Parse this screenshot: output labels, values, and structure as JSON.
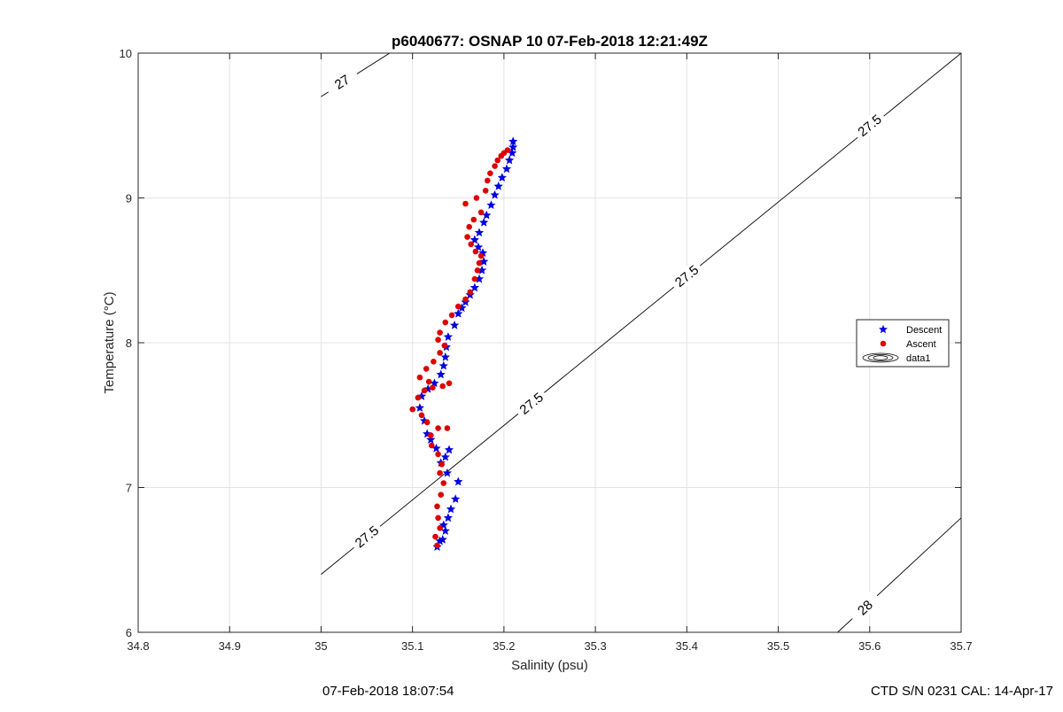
{
  "chart_data": {
    "type": "scatter",
    "title": "p6040677: OSNAP 10 07-Feb-2018 12:21:49Z",
    "xlabel": "Salinity (psu)",
    "ylabel": "Temperature (°C)",
    "xlim": [
      34.8,
      35.7
    ],
    "ylim": [
      6,
      10
    ],
    "xticks": [
      "34.8",
      "34.9",
      "35",
      "35.1",
      "35.2",
      "35.3",
      "35.4",
      "35.5",
      "35.6",
      "35.7"
    ],
    "yticks": [
      "6",
      "7",
      "8",
      "9",
      "10"
    ],
    "grid": true,
    "legend_position": "right",
    "series": [
      {
        "name": "Descent",
        "color": "#0000dd",
        "marker": "pentagram",
        "points": [
          [
            35.127,
            6.59
          ],
          [
            35.13,
            6.63
          ],
          [
            35.133,
            6.64
          ],
          [
            35.136,
            6.7
          ],
          [
            35.134,
            6.74
          ],
          [
            35.139,
            6.79
          ],
          [
            35.142,
            6.85
          ],
          [
            35.147,
            6.92
          ],
          [
            35.15,
            7.04
          ],
          [
            35.138,
            7.1
          ],
          [
            35.131,
            7.17
          ],
          [
            35.136,
            7.21
          ],
          [
            35.14,
            7.26
          ],
          [
            35.126,
            7.27
          ],
          [
            35.12,
            7.33
          ],
          [
            35.116,
            7.37
          ],
          [
            35.113,
            7.46
          ],
          [
            35.108,
            7.55
          ],
          [
            35.11,
            7.63
          ],
          [
            35.117,
            7.68
          ],
          [
            35.124,
            7.72
          ],
          [
            35.131,
            7.78
          ],
          [
            35.134,
            7.84
          ],
          [
            35.136,
            7.9
          ],
          [
            35.137,
            7.97
          ],
          [
            35.139,
            8.04
          ],
          [
            35.146,
            8.12
          ],
          [
            35.15,
            8.2
          ],
          [
            35.154,
            8.24
          ],
          [
            35.158,
            8.28
          ],
          [
            35.163,
            8.33
          ],
          [
            35.168,
            8.38
          ],
          [
            35.173,
            8.44
          ],
          [
            35.176,
            8.5
          ],
          [
            35.178,
            8.56
          ],
          [
            35.177,
            8.62
          ],
          [
            35.172,
            8.66
          ],
          [
            35.168,
            8.71
          ],
          [
            35.173,
            8.76
          ],
          [
            35.178,
            8.83
          ],
          [
            35.181,
            8.88
          ],
          [
            35.186,
            8.95
          ],
          [
            35.19,
            9.02
          ],
          [
            35.194,
            9.08
          ],
          [
            35.198,
            9.14
          ],
          [
            35.203,
            9.2
          ],
          [
            35.206,
            9.26
          ],
          [
            35.209,
            9.31
          ],
          [
            35.21,
            9.35
          ],
          [
            35.21,
            9.39
          ]
        ]
      },
      {
        "name": "Ascent",
        "color": "#dd0000",
        "marker": "circle",
        "points": [
          [
            35.127,
            6.6
          ],
          [
            35.125,
            6.66
          ],
          [
            35.13,
            6.72
          ],
          [
            35.128,
            6.79
          ],
          [
            35.127,
            6.87
          ],
          [
            35.131,
            6.95
          ],
          [
            35.134,
            7.03
          ],
          [
            35.13,
            7.1
          ],
          [
            35.132,
            7.16
          ],
          [
            35.128,
            7.23
          ],
          [
            35.121,
            7.29
          ],
          [
            35.12,
            7.36
          ],
          [
            35.128,
            7.41
          ],
          [
            35.138,
            7.41
          ],
          [
            35.116,
            7.45
          ],
          [
            35.11,
            7.5
          ],
          [
            35.1,
            7.54
          ],
          [
            35.106,
            7.62
          ],
          [
            35.113,
            7.67
          ],
          [
            35.122,
            7.69
          ],
          [
            35.133,
            7.7
          ],
          [
            35.14,
            7.72
          ],
          [
            35.118,
            7.73
          ],
          [
            35.108,
            7.76
          ],
          [
            35.115,
            7.82
          ],
          [
            35.123,
            7.87
          ],
          [
            35.13,
            7.93
          ],
          [
            35.135,
            7.98
          ],
          [
            35.128,
            8.02
          ],
          [
            35.13,
            8.07
          ],
          [
            35.136,
            8.14
          ],
          [
            35.143,
            8.19
          ],
          [
            35.15,
            8.25
          ],
          [
            35.158,
            8.3
          ],
          [
            35.163,
            8.35
          ],
          [
            35.168,
            8.44
          ],
          [
            35.171,
            8.5
          ],
          [
            35.173,
            8.55
          ],
          [
            35.175,
            8.6
          ],
          [
            35.169,
            8.63
          ],
          [
            35.164,
            8.68
          ],
          [
            35.16,
            8.73
          ],
          [
            35.162,
            8.8
          ],
          [
            35.167,
            8.85
          ],
          [
            35.175,
            8.9
          ],
          [
            35.158,
            8.96
          ],
          [
            35.17,
            9.0
          ],
          [
            35.18,
            9.05
          ],
          [
            35.182,
            9.12
          ],
          [
            35.185,
            9.17
          ],
          [
            35.19,
            9.22
          ],
          [
            35.193,
            9.26
          ],
          [
            35.197,
            9.29
          ],
          [
            35.2,
            9.31
          ],
          [
            35.204,
            9.33
          ]
        ]
      },
      {
        "name": "data1",
        "color": "#000000",
        "marker": "contour"
      }
    ],
    "contours": [
      {
        "label": "27",
        "segments": [
          [
            [
              35.0,
              9.7
            ],
            [
              35.3,
              10.9
            ]
          ]
        ],
        "label_points": [
          [
            35.023,
            9.8
          ]
        ]
      },
      {
        "label": "27.5",
        "segments": [
          [
            [
              35.0,
              6.4
            ],
            [
              35.7,
              10.0
            ]
          ]
        ],
        "label_points": [
          [
            35.05,
            6.66
          ],
          [
            35.23,
            7.58
          ],
          [
            35.4,
            8.46
          ],
          [
            35.6,
            9.5
          ]
        ]
      },
      {
        "label": "28",
        "segments": [
          [
            [
              35.565,
              6.0
            ],
            [
              35.7,
              6.79
            ]
          ]
        ],
        "label_points": [
          [
            35.595,
            6.17
          ]
        ]
      }
    ]
  },
  "footer": {
    "left": "07-Feb-2018 18:07:54",
    "right": "CTD S/N 0231  CAL: 14-Apr-17"
  }
}
